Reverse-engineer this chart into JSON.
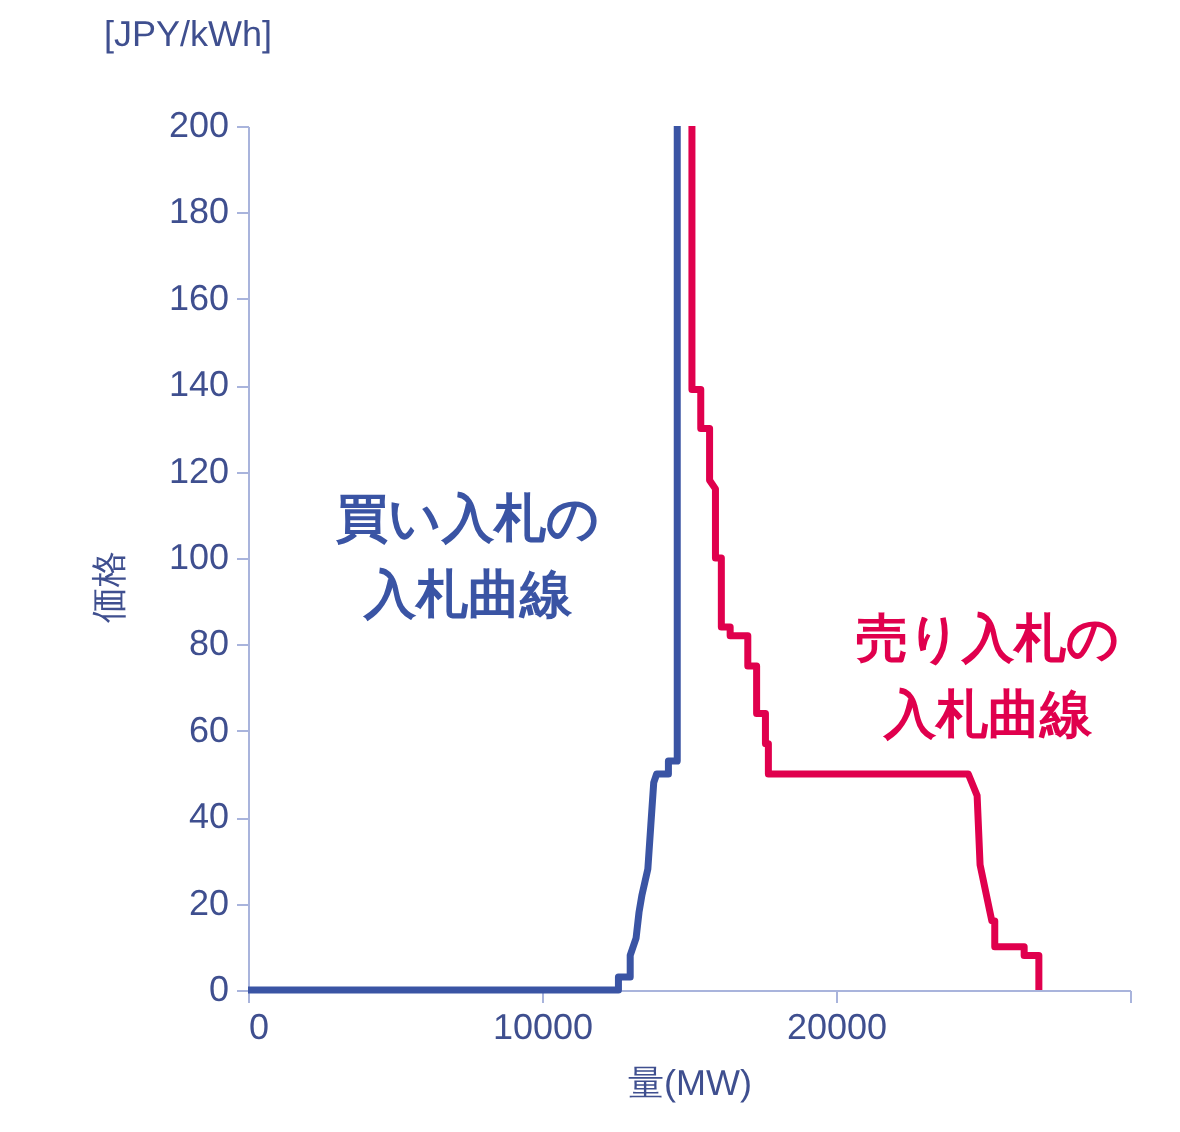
{
  "chart_data": {
    "type": "line",
    "xlabel": "量(MW)",
    "ylabel": "価格",
    "annotations": [
      "[JPY/kWh]"
    ],
    "xlim": [
      0,
      30000
    ],
    "xticks": [
      0,
      10000,
      20000,
      {
        "value": 30000,
        "label": null
      }
    ],
    "ylim": [
      0,
      200
    ],
    "yticks": [
      0,
      20,
      40,
      60,
      80,
      100,
      120,
      140,
      160,
      180,
      200
    ],
    "grid": false,
    "marker": "none",
    "line_style": "solid",
    "series": [
      {
        "name": "買い入札の入札曲線",
        "color": "#3a54a4",
        "x": [
          0,
          12600,
          12600,
          13000,
          13000,
          13200,
          13300,
          13400,
          13600,
          13700,
          13800,
          13900,
          14300,
          14300,
          14600,
          14600
        ],
        "values": [
          0,
          0,
          3,
          3,
          8,
          12,
          18,
          22,
          28,
          38,
          48,
          50,
          50,
          53,
          53,
          200
        ]
      },
      {
        "name": "売り入札の入札曲線",
        "color": "#e0004d",
        "x": [
          15100,
          15100,
          15400,
          15400,
          15700,
          15700,
          15900,
          15900,
          16100,
          16100,
          16400,
          16400,
          17000,
          17000,
          17300,
          17300,
          17600,
          17600,
          17700,
          17700,
          24500,
          24800,
          24900,
          25300,
          25400,
          25400,
          26400,
          26400,
          26900,
          26900
        ],
        "values": [
          200,
          139,
          139,
          130,
          130,
          118,
          116,
          100,
          100,
          84,
          84,
          82,
          82,
          75,
          75,
          64,
          64,
          57,
          57,
          50,
          50,
          45,
          29,
          16,
          16,
          10,
          10,
          8,
          8,
          0
        ]
      }
    ]
  }
}
